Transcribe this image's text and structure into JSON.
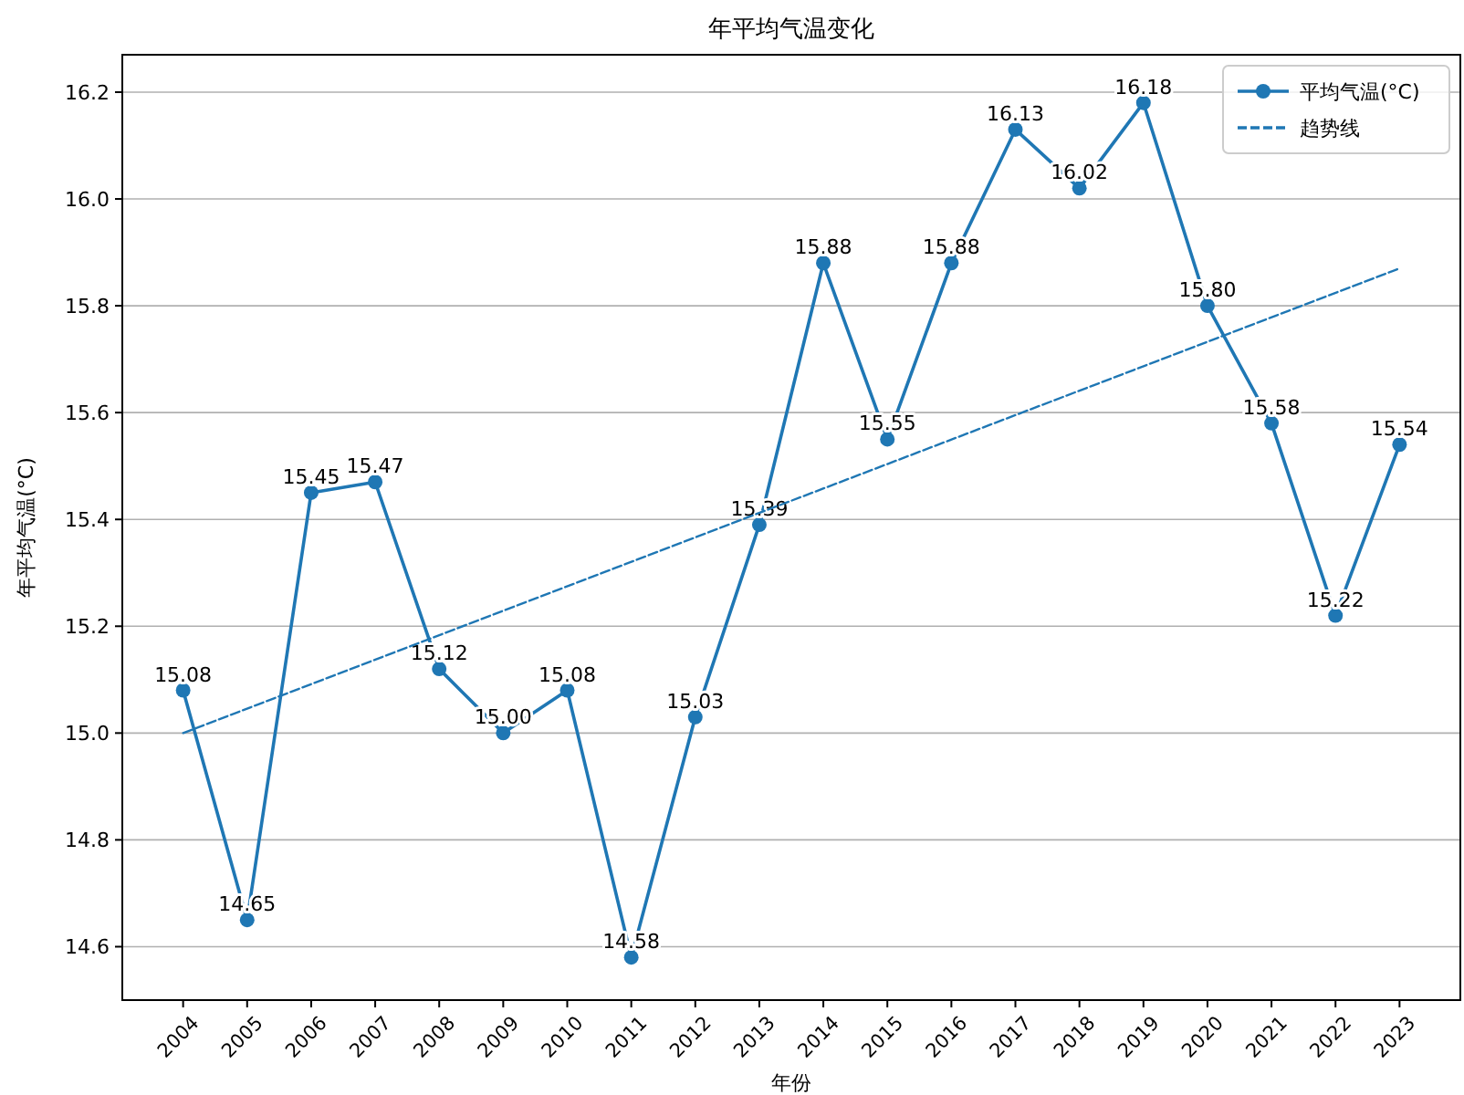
{
  "chart_data": {
    "type": "line",
    "title": "年平均气温变化",
    "xlabel": "年份",
    "ylabel": "年平均气温(°C)",
    "categories": [
      "2004",
      "2005",
      "2006",
      "2007",
      "2008",
      "2009",
      "2010",
      "2011",
      "2012",
      "2013",
      "2014",
      "2015",
      "2016",
      "2017",
      "2018",
      "2019",
      "2020",
      "2021",
      "2022",
      "2023"
    ],
    "series": [
      {
        "name": "平均气温(°C)",
        "color": "#1f77b4",
        "marker": "circle",
        "line_style": "solid",
        "values": [
          15.08,
          14.65,
          15.45,
          15.47,
          15.12,
          15.0,
          15.08,
          14.58,
          15.03,
          15.39,
          15.88,
          15.55,
          15.88,
          16.13,
          16.02,
          16.18,
          15.8,
          15.58,
          15.22,
          15.54
        ],
        "value_labels": [
          "15.08",
          "14.65",
          "15.45",
          "15.47",
          "15.12",
          "15.00",
          "15.08",
          "14.58",
          "15.03",
          "15.39",
          "15.88",
          "15.55",
          "15.88",
          "16.13",
          "16.02",
          "16.18",
          "15.80",
          "15.58",
          "15.22",
          "15.54"
        ]
      },
      {
        "name": "趋势线",
        "type": "line",
        "color": "#1f77b4",
        "marker": "none",
        "line_style": "dashed",
        "values": [
          15.0,
          null,
          null,
          null,
          null,
          null,
          null,
          null,
          null,
          null,
          null,
          null,
          null,
          null,
          null,
          null,
          null,
          null,
          null,
          15.87
        ]
      }
    ],
    "ylim": [
      14.5,
      16.27
    ],
    "yticks": [
      {
        "value": 14.6,
        "label": "14.6"
      },
      {
        "value": 14.8,
        "label": "14.8"
      },
      {
        "value": 15.0,
        "label": "15.0"
      },
      {
        "value": 15.2,
        "label": "15.2"
      },
      {
        "value": 15.4,
        "label": "15.4"
      },
      {
        "value": 15.6,
        "label": "15.6"
      },
      {
        "value": 15.8,
        "label": "15.8"
      },
      {
        "value": 16.0,
        "label": "16.0"
      },
      {
        "value": 16.2,
        "label": "16.2"
      }
    ],
    "grid": "y",
    "legend": "top right"
  }
}
